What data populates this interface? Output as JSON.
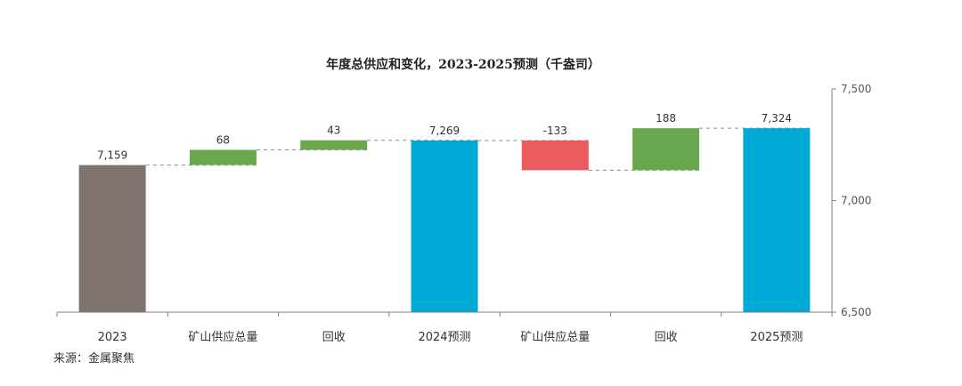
{
  "chart_data": {
    "type": "bar",
    "subtype": "waterfall",
    "title": "年度总供应和变化，2023-2025预测（千盎司）",
    "categories": [
      "2023",
      "矿山供应总量",
      "回收",
      "2024预测",
      "矿山供应总量",
      "回收",
      "2025预测"
    ],
    "values": [
      7159,
      68,
      43,
      7269,
      -133,
      188,
      7324
    ],
    "value_labels": [
      "7,159",
      "68",
      "43",
      "7,269",
      "-133",
      "188",
      "7,324"
    ],
    "kinds": [
      "total",
      "delta",
      "delta",
      "total",
      "delta",
      "delta",
      "total"
    ],
    "ylim": [
      6500,
      7500
    ],
    "yaxis_position": "right",
    "y_ticks": [
      6500,
      7000,
      7500
    ],
    "y_tick_labels": [
      "6,500",
      "7,000",
      "7,500"
    ],
    "colors": {
      "total_2023": "#7f736d",
      "total_forecast": "#00a9d6",
      "increase": "#6aa84f",
      "decrease": "#eb5b5e",
      "connector": "#8c8c8c",
      "axis": "#7f7f7f"
    },
    "grid": false,
    "legend": "none"
  },
  "source_note": "来源：金属聚焦"
}
